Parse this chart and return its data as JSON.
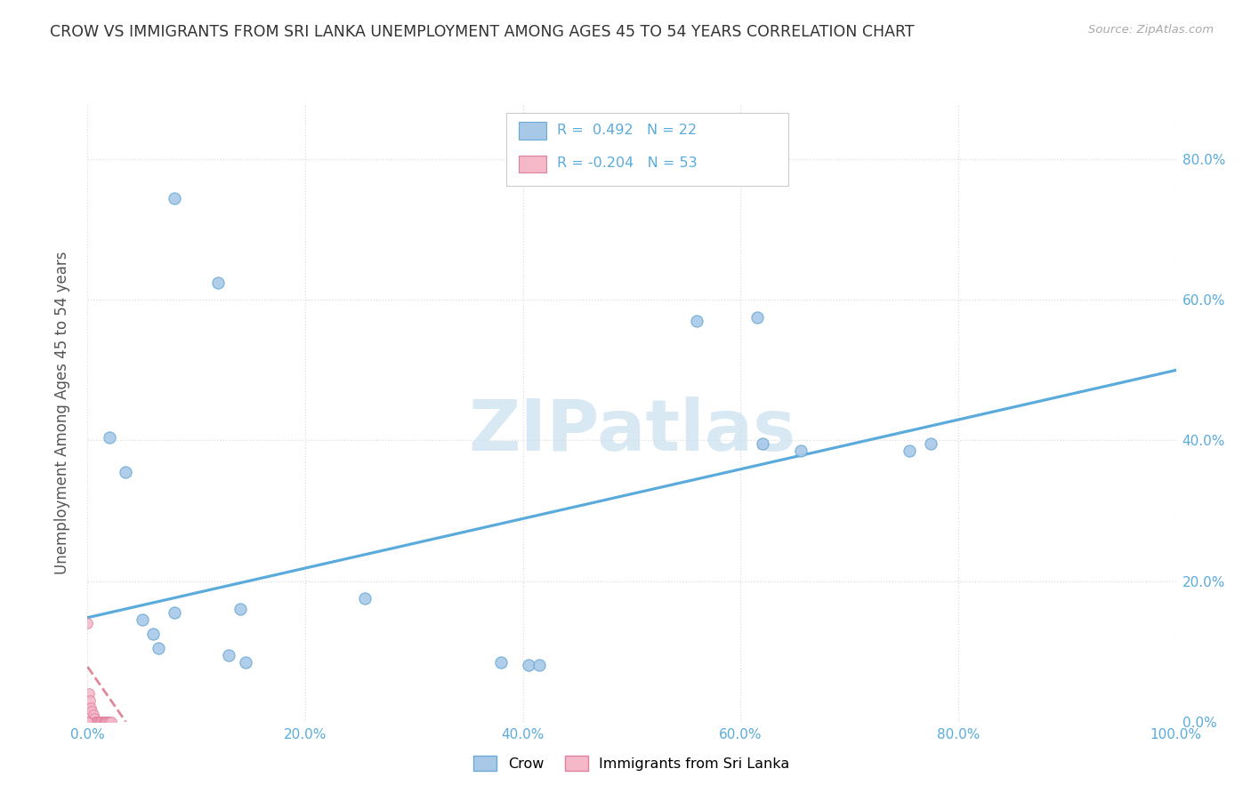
{
  "title": "CROW VS IMMIGRANTS FROM SRI LANKA UNEMPLOYMENT AMONG AGES 45 TO 54 YEARS CORRELATION CHART",
  "source": "Source: ZipAtlas.com",
  "ylabel": "Unemployment Among Ages 45 to 54 years",
  "crow_scatter_color": "#a8c8e8",
  "crow_scatter_edge": "#6aaad4",
  "srilanka_scatter_color": "#f4b8c8",
  "srilanka_scatter_edge": "#e080a0",
  "crow_line_color": "#5aabdc",
  "srilanka_line_color": "#e08898",
  "text_color": "#5aabdc",
  "legend_text_color": "#5aabdc",
  "grid_color": "#dddddd",
  "bg_color": "#ffffff",
  "watermark_color": "#c8e0f0",
  "crow_x": [
    0.08,
    0.12,
    0.02,
    0.035,
    0.06,
    0.065,
    0.14,
    0.255,
    0.13,
    0.145,
    0.56,
    0.615,
    0.62,
    0.655,
    0.755,
    0.775,
    0.05,
    0.08,
    0.38,
    0.405,
    0.415
  ],
  "crow_y": [
    0.745,
    0.625,
    0.405,
    0.355,
    0.125,
    0.105,
    0.16,
    0.175,
    0.095,
    0.085,
    0.57,
    0.575,
    0.395,
    0.385,
    0.385,
    0.395,
    0.145,
    0.155,
    0.085,
    0.08,
    0.08
  ],
  "sri_x": [
    0.0,
    0.001,
    0.002,
    0.003,
    0.004,
    0.005,
    0.006,
    0.007,
    0.008,
    0.009,
    0.01,
    0.011,
    0.012,
    0.013,
    0.014,
    0.015,
    0.016,
    0.017,
    0.018,
    0.019,
    0.02,
    0.022,
    0.0,
    0.0,
    0.0,
    0.0,
    0.0,
    0.0,
    0.0,
    0.0,
    0.0,
    0.0,
    0.0,
    0.0,
    0.0,
    0.0,
    0.0,
    0.0,
    0.0,
    0.0,
    0.0,
    0.0,
    0.0,
    0.0,
    0.0,
    0.0,
    0.0,
    0.0,
    0.0,
    0.0,
    0.0,
    0.0,
    0.0
  ],
  "sri_y": [
    0.14,
    0.04,
    0.03,
    0.02,
    0.015,
    0.01,
    0.005,
    0.0,
    0.0,
    0.0,
    0.0,
    0.0,
    0.0,
    0.0,
    0.0,
    0.0,
    0.0,
    0.0,
    0.0,
    0.0,
    0.0,
    0.0,
    0.0,
    0.0,
    0.0,
    0.0,
    0.0,
    0.0,
    0.0,
    0.0,
    0.0,
    0.0,
    0.0,
    0.0,
    0.0,
    0.0,
    0.0,
    0.0,
    0.0,
    0.0,
    0.0,
    0.0,
    0.0,
    0.0,
    0.0,
    0.0,
    0.0,
    0.0,
    0.0,
    0.0,
    0.0,
    0.0,
    0.0
  ],
  "crow_trend_x": [
    0.0,
    1.0
  ],
  "crow_trend_y": [
    0.148,
    0.5
  ],
  "sri_trend_x": [
    0.0,
    0.035
  ],
  "sri_trend_y": [
    0.078,
    0.0
  ],
  "xlim": [
    0.0,
    1.0
  ],
  "ylim": [
    0.0,
    0.88
  ],
  "ytick_positions": [
    0.0,
    0.2,
    0.4,
    0.6,
    0.8
  ],
  "ytick_labels": [
    "0.0%",
    "20.0%",
    "40.0%",
    "60.0%",
    "80.0%"
  ],
  "xtick_positions": [
    0.0,
    0.2,
    0.4,
    0.6,
    0.8,
    1.0
  ],
  "xtick_labels": [
    "0.0%",
    "20.0%",
    "40.0%",
    "60.0%",
    "80.0%",
    "100.0%"
  ]
}
